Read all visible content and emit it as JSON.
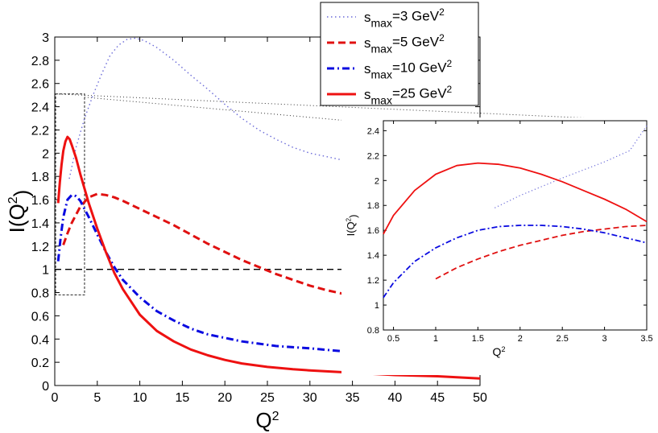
{
  "chart_data": {
    "type": "line",
    "main": {
      "xlabel": "Q",
      "xlabel_sup": "2",
      "ylabel_prefix": "I(Q",
      "ylabel_sup": "2",
      "ylabel_suffix": ")",
      "xlim": [
        0,
        50
      ],
      "ylim": [
        0,
        3
      ],
      "xticks": [
        0,
        5,
        10,
        15,
        20,
        25,
        30,
        35,
        40,
        45,
        50
      ],
      "yticks": [
        0,
        0.2,
        0.4,
        0.6,
        0.8,
        1,
        1.2,
        1.4,
        1.6,
        1.8,
        2,
        2.2,
        2.4,
        2.6,
        2.8,
        3
      ],
      "reference_line": {
        "y": 1,
        "x_from": 0,
        "x_to": 34.5
      },
      "zoom_box": {
        "x": [
          0.1,
          3.5
        ],
        "y": [
          0.78,
          2.51
        ]
      }
    },
    "inset": {
      "xlabel": "Q",
      "xlabel_sup": "2",
      "ylabel_prefix": "I(Q",
      "ylabel_sup": "2",
      "ylabel_suffix": ")",
      "xlim": [
        0.38,
        3.5
      ],
      "ylim": [
        0.8,
        2.48
      ],
      "xticks": [
        0.5,
        1,
        1.5,
        2,
        2.5,
        3,
        3.5
      ],
      "yticks": [
        0.8,
        1,
        1.2,
        1.4,
        1.6,
        1.8,
        2,
        2.2,
        2.4
      ]
    },
    "legend": {
      "position": "top-center",
      "entries": [
        {
          "s": "s",
          "sub": "max",
          "val": "=3 GeV",
          "sup": "2"
        },
        {
          "s": "s",
          "sub": "max",
          "val": "=5 GeV",
          "sup": "2"
        },
        {
          "s": "s",
          "sub": "max",
          "val": "=10 GeV",
          "sup": "2"
        },
        {
          "s": "s",
          "sub": "max",
          "val": "=25 GeV",
          "sup": "2"
        }
      ]
    },
    "series": [
      {
        "name": "s_max=3 GeV^2",
        "color": "#6b6bd8",
        "style": "dotted",
        "main_points": [
          [
            1.7,
            1.78
          ],
          [
            2.5,
            2.05
          ],
          [
            3.5,
            2.3
          ],
          [
            4.5,
            2.5
          ],
          [
            5.5,
            2.68
          ],
          [
            6.5,
            2.84
          ],
          [
            7.5,
            2.93
          ],
          [
            8.5,
            2.98
          ],
          [
            9.5,
            2.99
          ],
          [
            10.5,
            2.97
          ],
          [
            12,
            2.91
          ],
          [
            14,
            2.8
          ],
          [
            16,
            2.67
          ],
          [
            18,
            2.55
          ],
          [
            20,
            2.42
          ],
          [
            22,
            2.3
          ],
          [
            24,
            2.2
          ],
          [
            26,
            2.12
          ],
          [
            28,
            2.05
          ],
          [
            30,
            2.0
          ],
          [
            32,
            1.97
          ],
          [
            34.5,
            1.93
          ]
        ],
        "inset_points": [
          [
            1.7,
            1.78
          ],
          [
            2.0,
            1.88
          ],
          [
            2.5,
            2.02
          ],
          [
            3.0,
            2.15
          ],
          [
            3.3,
            2.24
          ],
          [
            3.5,
            2.44
          ]
        ]
      },
      {
        "name": "s_max=5 GeV^2",
        "color": "#e01010",
        "style": "dashed",
        "main_points": [
          [
            1.0,
            1.21
          ],
          [
            1.5,
            1.31
          ],
          [
            2,
            1.4
          ],
          [
            2.5,
            1.47
          ],
          [
            3,
            1.54
          ],
          [
            4,
            1.62
          ],
          [
            5,
            1.65
          ],
          [
            6,
            1.64
          ],
          [
            7,
            1.62
          ],
          [
            8,
            1.59
          ],
          [
            10,
            1.52
          ],
          [
            12,
            1.45
          ],
          [
            14,
            1.38
          ],
          [
            16,
            1.3
          ],
          [
            18,
            1.22
          ],
          [
            20,
            1.15
          ],
          [
            22,
            1.08
          ],
          [
            24,
            1.02
          ],
          [
            26,
            0.96
          ],
          [
            28,
            0.91
          ],
          [
            30,
            0.86
          ],
          [
            32,
            0.82
          ],
          [
            34.5,
            0.78
          ]
        ],
        "inset_points": [
          [
            1.0,
            1.21
          ],
          [
            1.25,
            1.3
          ],
          [
            1.5,
            1.37
          ],
          [
            1.75,
            1.43
          ],
          [
            2.0,
            1.48
          ],
          [
            2.25,
            1.52
          ],
          [
            2.5,
            1.56
          ],
          [
            2.75,
            1.59
          ],
          [
            3.0,
            1.61
          ],
          [
            3.25,
            1.63
          ],
          [
            3.5,
            1.64
          ]
        ]
      },
      {
        "name": "s_max=10 GeV^2",
        "color": "#0a0ae0",
        "style": "dashdot",
        "main_points": [
          [
            0.4,
            1.07
          ],
          [
            0.7,
            1.28
          ],
          [
            1,
            1.45
          ],
          [
            1.5,
            1.6
          ],
          [
            2,
            1.64
          ],
          [
            2.5,
            1.63
          ],
          [
            3,
            1.59
          ],
          [
            4,
            1.45
          ],
          [
            5,
            1.3
          ],
          [
            6,
            1.15
          ],
          [
            7,
            1.02
          ],
          [
            8,
            0.91
          ],
          [
            10,
            0.76
          ],
          [
            12,
            0.64
          ],
          [
            14,
            0.56
          ],
          [
            16,
            0.49
          ],
          [
            18,
            0.44
          ],
          [
            20,
            0.41
          ],
          [
            22,
            0.38
          ],
          [
            24,
            0.36
          ],
          [
            26,
            0.34
          ],
          [
            28,
            0.33
          ],
          [
            30,
            0.32
          ],
          [
            34.5,
            0.29
          ]
        ],
        "inset_points": [
          [
            0.38,
            1.06
          ],
          [
            0.5,
            1.18
          ],
          [
            0.75,
            1.35
          ],
          [
            1.0,
            1.46
          ],
          [
            1.25,
            1.54
          ],
          [
            1.5,
            1.6
          ],
          [
            1.75,
            1.63
          ],
          [
            2.0,
            1.64
          ],
          [
            2.25,
            1.64
          ],
          [
            2.5,
            1.63
          ],
          [
            2.75,
            1.61
          ],
          [
            3.0,
            1.58
          ],
          [
            3.25,
            1.54
          ],
          [
            3.5,
            1.5
          ]
        ]
      },
      {
        "name": "s_max=25 GeV^2",
        "color": "#ee1111",
        "style": "solid",
        "main_points": [
          [
            0.4,
            1.57
          ],
          [
            0.6,
            1.75
          ],
          [
            0.8,
            1.9
          ],
          [
            1,
            2.02
          ],
          [
            1.25,
            2.1
          ],
          [
            1.5,
            2.14
          ],
          [
            1.75,
            2.12
          ],
          [
            2,
            2.07
          ],
          [
            2.5,
            1.96
          ],
          [
            3,
            1.82
          ],
          [
            4,
            1.57
          ],
          [
            5,
            1.35
          ],
          [
            6,
            1.15
          ],
          [
            7,
            0.97
          ],
          [
            8,
            0.83
          ],
          [
            10,
            0.61
          ],
          [
            12,
            0.47
          ],
          [
            14,
            0.38
          ],
          [
            16,
            0.31
          ],
          [
            18,
            0.26
          ],
          [
            20,
            0.22
          ],
          [
            22,
            0.19
          ],
          [
            25,
            0.16
          ],
          [
            28,
            0.14
          ],
          [
            30,
            0.13
          ],
          [
            35,
            0.11
          ],
          [
            40,
            0.09
          ],
          [
            45,
            0.08
          ],
          [
            50,
            0.06
          ]
        ],
        "inset_points": [
          [
            0.38,
            1.57
          ],
          [
            0.5,
            1.72
          ],
          [
            0.75,
            1.92
          ],
          [
            1.0,
            2.05
          ],
          [
            1.25,
            2.12
          ],
          [
            1.5,
            2.14
          ],
          [
            1.75,
            2.13
          ],
          [
            2.0,
            2.1
          ],
          [
            2.25,
            2.05
          ],
          [
            2.5,
            1.99
          ],
          [
            2.75,
            1.92
          ],
          [
            3.0,
            1.85
          ],
          [
            3.25,
            1.77
          ],
          [
            3.5,
            1.67
          ]
        ]
      }
    ]
  }
}
